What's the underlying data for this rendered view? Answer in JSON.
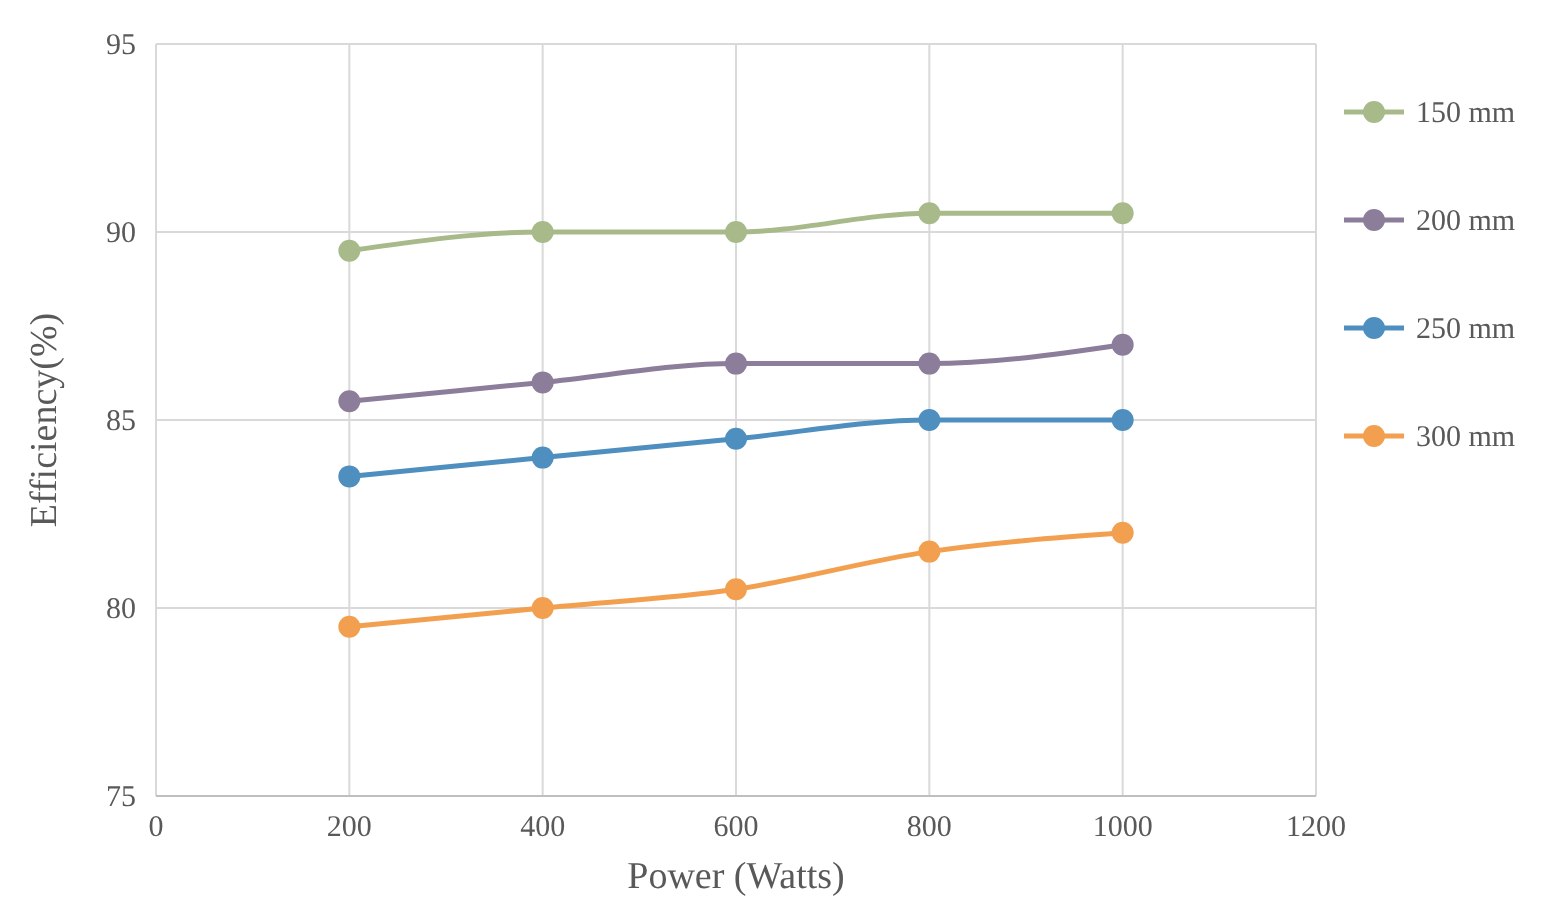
{
  "chart_data": {
    "type": "line",
    "xlabel": "Power (Watts)",
    "ylabel": "Efficiency(%)",
    "x": [
      200,
      400,
      600,
      800,
      1000
    ],
    "xlim": [
      0,
      1200
    ],
    "xticks": [
      0,
      200,
      400,
      600,
      800,
      1000,
      1200
    ],
    "ylim": [
      75,
      95
    ],
    "yticks": [
      75,
      80,
      85,
      90,
      95
    ],
    "grid": true,
    "legend": "right",
    "marker": "circle",
    "line_style": "solid",
    "series": [
      {
        "name": "150 mm",
        "color": "#a8b98a",
        "values": [
          89.5,
          90,
          90,
          90.5,
          90.5
        ]
      },
      {
        "name": "200 mm",
        "color": "#8c7d9a",
        "values": [
          85.5,
          86,
          86.5,
          86.5,
          87
        ]
      },
      {
        "name": "250 mm",
        "color": "#4e8fc0",
        "values": [
          83.5,
          84,
          84.5,
          85,
          85
        ]
      },
      {
        "name": "300 mm",
        "color": "#f2a04f",
        "values": [
          79.5,
          80,
          80.5,
          81.5,
          82
        ]
      }
    ]
  }
}
